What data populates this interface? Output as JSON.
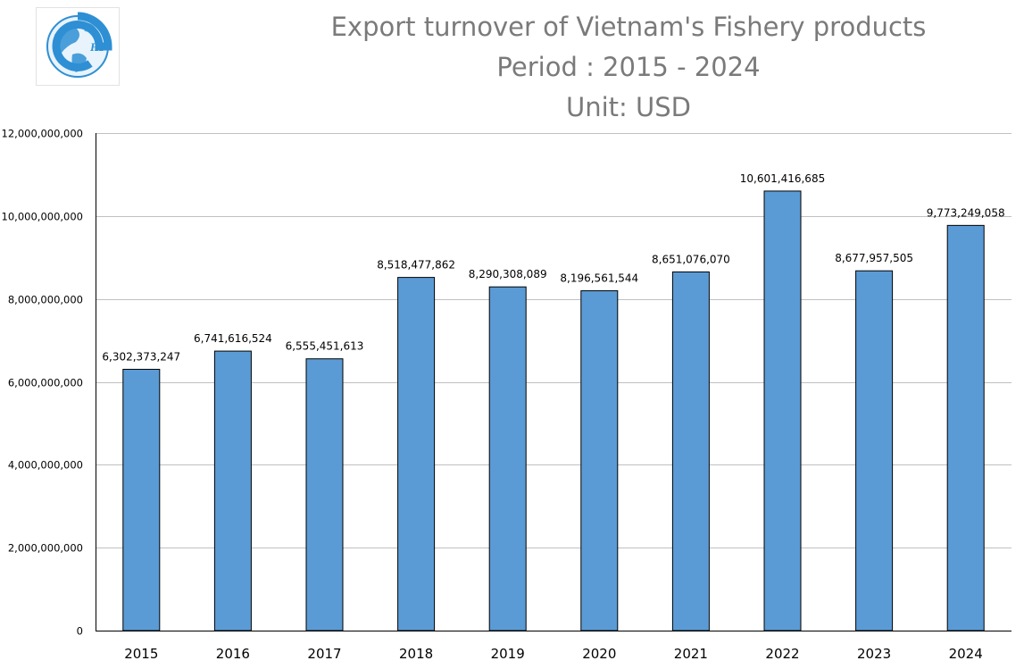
{
  "title_lines": [
    "Export turnover of Vietnam's Fishery products",
    "Period : 2015 - 2024",
    "Unit: USD"
  ],
  "logo": {
    "text": "HP",
    "icon": "globe-logo-icon",
    "color": "#2e8fd4"
  },
  "chart_data": {
    "type": "bar",
    "title": "Export turnover of Vietnam's Fishery products\nPeriod : 2015 - 2024\nUnit: USD",
    "categories": [
      "2015",
      "2016",
      "2017",
      "2018",
      "2019",
      "2020",
      "2021",
      "2022",
      "2023",
      "2024"
    ],
    "values": [
      6302373247,
      6741616524,
      6555451613,
      8518477862,
      8290308089,
      8196561544,
      8651076070,
      10601416685,
      8677957505,
      9773249058
    ],
    "data_labels": [
      "6,302,373,247",
      "6,741,616,524",
      "6,555,451,613",
      "8,518,477,862",
      "8,290,308,089",
      "8,196,561,544",
      "8,651,076,070",
      "10,601,416,685",
      "8,677,957,505",
      "9,773,249,058"
    ],
    "y_ticks": [
      0,
      2000000000,
      4000000000,
      6000000000,
      8000000000,
      10000000000,
      12000000000
    ],
    "y_tick_labels": [
      "0",
      "2,000,000,000",
      "4,000,000,000",
      "6,000,000,000",
      "8,000,000,000",
      "10,000,000,000",
      "12,000,000,000"
    ],
    "ylim": [
      0,
      12000000000
    ],
    "xlabel": "",
    "ylabel": "",
    "grid": true,
    "legend": "none",
    "bar_color": "#5b9bd5",
    "bar_edge_color": "#000000"
  }
}
